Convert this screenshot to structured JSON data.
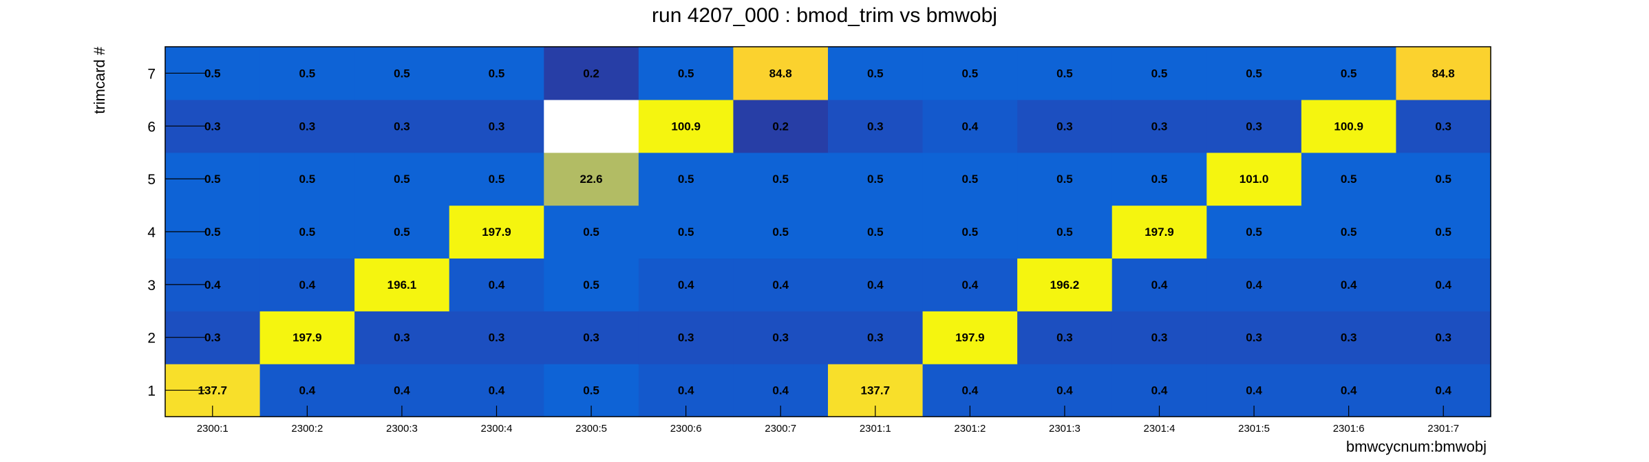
{
  "chart_data": {
    "type": "heatmap",
    "title": "run 4207_000 : bmod_trim vs bmwobj",
    "xlabel": "bmwcycnum:bmwobj",
    "ylabel": "trimcard #",
    "x_categories": [
      "2300:1",
      "2300:2",
      "2300:3",
      "2300:4",
      "2300:5",
      "2300:6",
      "2300:7",
      "2301:1",
      "2301:2",
      "2301:3",
      "2301:4",
      "2301:5",
      "2301:6",
      "2301:7"
    ],
    "y_categories": [
      "1",
      "2",
      "3",
      "4",
      "5",
      "6",
      "7"
    ],
    "values": [
      [
        137.7,
        0.4,
        0.4,
        0.4,
        0.5,
        0.4,
        0.4,
        137.7,
        0.4,
        0.4,
        0.4,
        0.4,
        0.4,
        0.4
      ],
      [
        0.3,
        197.9,
        0.3,
        0.3,
        0.3,
        0.3,
        0.3,
        0.3,
        197.9,
        0.3,
        0.3,
        0.3,
        0.3,
        0.3
      ],
      [
        0.4,
        0.4,
        196.1,
        0.4,
        0.5,
        0.4,
        0.4,
        0.4,
        0.4,
        196.2,
        0.4,
        0.4,
        0.4,
        0.4
      ],
      [
        0.5,
        0.5,
        0.5,
        197.9,
        0.5,
        0.5,
        0.5,
        0.5,
        0.5,
        0.5,
        197.9,
        0.5,
        0.5,
        0.5
      ],
      [
        0.5,
        0.5,
        0.5,
        0.5,
        22.6,
        0.5,
        0.5,
        0.5,
        0.5,
        0.5,
        0.5,
        101.0,
        0.5,
        0.5
      ],
      [
        0.3,
        0.3,
        0.3,
        0.3,
        null,
        100.9,
        0.2,
        0.3,
        0.4,
        0.3,
        0.3,
        0.3,
        100.9,
        0.3
      ],
      [
        0.5,
        0.5,
        0.5,
        0.5,
        0.2,
        0.5,
        84.8,
        0.5,
        0.5,
        0.5,
        0.5,
        0.5,
        0.5,
        84.8
      ]
    ],
    "colors": {
      "background": "#ffffff",
      "frame": "#000000",
      "cell_high": "#f5f50f",
      "cell_137": "#f8df2a",
      "cell_85": "#fbd22e",
      "cell_22": "#b2bc64",
      "cell_0.5": "#0e63d6",
      "cell_0.4": "#1459cc",
      "cell_0.3": "#1c4fc0",
      "cell_0.2": "#273ea6",
      "cell_empty": "#ffffff"
    }
  }
}
